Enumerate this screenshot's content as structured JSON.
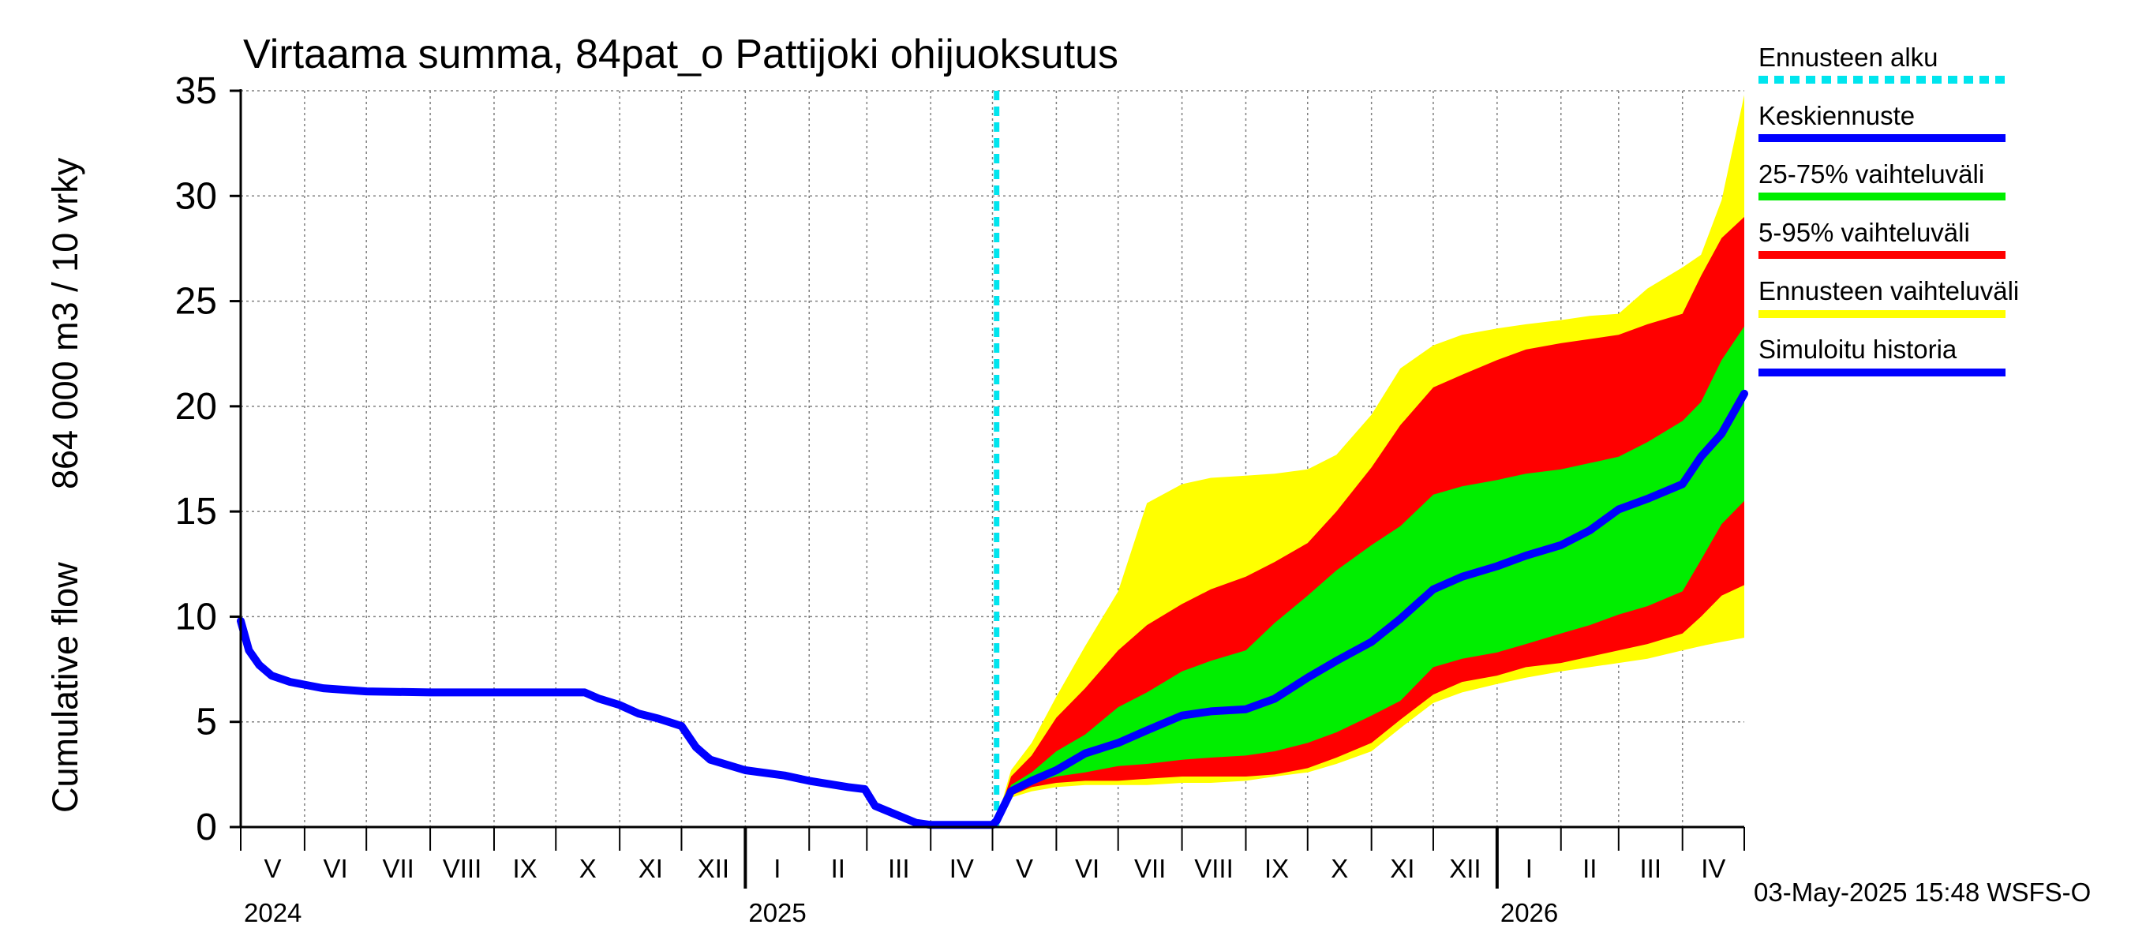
{
  "chart_data": {
    "type": "area",
    "title": "Virtaama summa, 84pat_o Pattijoki ohijuoksutus",
    "ylabel_line1": "Cumulative flow",
    "ylabel_line2": "864 000 m3 / 10 vrky",
    "ylim": [
      0,
      35
    ],
    "y_ticks": [
      "0",
      "5",
      "10",
      "15",
      "20",
      "25",
      "30",
      "35"
    ],
    "xlim": [
      "2024-05-01",
      "2026-05-01"
    ],
    "month_labels": [
      "V",
      "VI",
      "VII",
      "VIII",
      "IX",
      "X",
      "XI",
      "XII",
      "I",
      "II",
      "III",
      "IV",
      "V",
      "VI",
      "VII",
      "VIII",
      "IX",
      "X",
      "XI",
      "XII",
      "I",
      "II",
      "III",
      "IV"
    ],
    "year_labels": [
      "2024",
      "2025",
      "2026"
    ],
    "forecast_start": "2025-05-03",
    "grid": true,
    "legend_position": "right",
    "legend": [
      {
        "label": "Ennusteen alku",
        "color": "#00e5ee",
        "style": "dashed"
      },
      {
        "label": "Keskiennuste",
        "color": "#0000ff",
        "style": "solid"
      },
      {
        "label": "25-75% vaihteluväli",
        "color": "#00ee00",
        "style": "solid"
      },
      {
        "label": "5-95% vaihteluväli",
        "color": "#ff0000",
        "style": "solid"
      },
      {
        "label": "Ennusteen vaihteluväli",
        "color": "#ffff00",
        "style": "solid"
      },
      {
        "label": "Simuloitu historia",
        "color": "#0000ff",
        "style": "solid"
      }
    ],
    "colors": {
      "history": "#0000ff",
      "median": "#0000ff",
      "band_25_75": "#00ee00",
      "band_5_95": "#ff0000",
      "band_min_max": "#ffff00",
      "forecast_line": "#00e5ee"
    },
    "history": {
      "x": [
        "2024-05-01",
        "2024-05-05",
        "2024-05-10",
        "2024-05-16",
        "2024-05-25",
        "2024-06-10",
        "2024-07-01",
        "2024-08-01",
        "2024-09-01",
        "2024-10-01",
        "2024-10-15",
        "2024-10-22",
        "2024-11-01",
        "2024-11-10",
        "2024-11-20",
        "2024-12-01",
        "2024-12-08",
        "2024-12-15",
        "2025-01-01",
        "2025-01-20",
        "2025-02-01",
        "2025-02-20",
        "2025-02-28",
        "2025-03-05",
        "2025-03-15",
        "2025-03-25",
        "2025-04-01",
        "2025-04-15",
        "2025-04-28",
        "2025-05-01"
      ],
      "y": [
        9.8,
        8.4,
        7.7,
        7.2,
        6.9,
        6.6,
        6.45,
        6.4,
        6.4,
        6.4,
        6.4,
        6.1,
        5.8,
        5.4,
        5.15,
        4.8,
        3.8,
        3.2,
        2.7,
        2.45,
        2.2,
        1.9,
        1.8,
        1.0,
        0.6,
        0.2,
        0.1,
        0.1,
        0.1,
        0.1
      ]
    },
    "forecast": {
      "x": [
        "2025-05-03",
        "2025-05-10",
        "2025-05-20",
        "2025-06-01",
        "2025-06-15",
        "2025-07-01",
        "2025-07-15",
        "2025-08-01",
        "2025-08-15",
        "2025-09-01",
        "2025-09-15",
        "2025-10-01",
        "2025-10-15",
        "2025-11-01",
        "2025-11-15",
        "2025-12-01",
        "2025-12-15",
        "2026-01-01",
        "2026-01-15",
        "2026-02-01",
        "2026-02-15",
        "2026-03-01",
        "2026-03-15",
        "2026-04-01",
        "2026-04-10",
        "2026-04-20",
        "2026-05-01"
      ],
      "median": [
        0.3,
        1.7,
        2.2,
        2.7,
        3.5,
        4.0,
        4.6,
        5.3,
        5.5,
        5.6,
        6.1,
        7.1,
        7.9,
        8.8,
        9.9,
        11.3,
        11.9,
        12.4,
        12.9,
        13.4,
        14.1,
        15.1,
        15.6,
        16.3,
        17.6,
        18.7,
        20.6
      ],
      "p25": [
        0.3,
        1.6,
        2.1,
        2.4,
        2.6,
        2.9,
        3.0,
        3.2,
        3.3,
        3.4,
        3.6,
        4.0,
        4.5,
        5.3,
        6.0,
        7.6,
        8.0,
        8.3,
        8.7,
        9.2,
        9.6,
        10.1,
        10.5,
        11.2,
        12.7,
        14.4,
        15.5
      ],
      "p75": [
        0.3,
        2.0,
        2.6,
        3.6,
        4.4,
        5.7,
        6.4,
        7.4,
        7.9,
        8.4,
        9.7,
        11.0,
        12.2,
        13.4,
        14.3,
        15.8,
        16.2,
        16.5,
        16.8,
        17.0,
        17.3,
        17.6,
        18.3,
        19.3,
        20.2,
        22.2,
        23.8
      ],
      "p5": [
        0.3,
        1.5,
        1.9,
        2.1,
        2.2,
        2.2,
        2.3,
        2.4,
        2.4,
        2.4,
        2.5,
        2.8,
        3.3,
        4.0,
        5.1,
        6.3,
        6.9,
        7.2,
        7.6,
        7.8,
        8.1,
        8.4,
        8.7,
        9.2,
        10.0,
        11.0,
        11.5
      ],
      "p95": [
        0.3,
        2.4,
        3.4,
        5.2,
        6.6,
        8.4,
        9.6,
        10.6,
        11.3,
        11.9,
        12.6,
        13.5,
        15.0,
        17.1,
        19.1,
        20.9,
        21.5,
        22.2,
        22.7,
        23.0,
        23.2,
        23.4,
        23.9,
        24.4,
        26.2,
        28.0,
        29.0
      ],
      "min": [
        0.3,
        1.4,
        1.7,
        1.9,
        2.0,
        2.0,
        2.0,
        2.1,
        2.1,
        2.2,
        2.4,
        2.6,
        3.0,
        3.6,
        4.7,
        5.9,
        6.4,
        6.8,
        7.1,
        7.4,
        7.6,
        7.8,
        8.0,
        8.4,
        8.6,
        8.8,
        9.0
      ],
      "max": [
        0.3,
        2.7,
        4.0,
        6.2,
        8.6,
        11.2,
        15.4,
        16.3,
        16.6,
        16.7,
        16.8,
        17.0,
        17.7,
        19.6,
        21.8,
        22.9,
        23.4,
        23.7,
        23.9,
        24.1,
        24.3,
        24.4,
        25.6,
        26.6,
        27.2,
        29.8,
        34.8
      ]
    }
  },
  "footer": {
    "timestamp": "03-May-2025 15:48 WSFS-O"
  }
}
